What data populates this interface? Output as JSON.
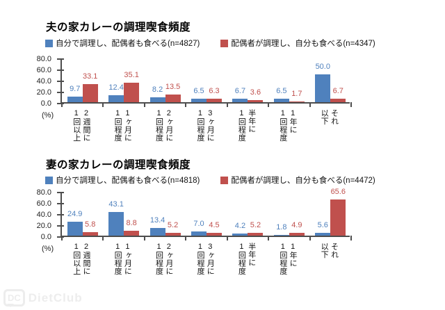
{
  "page": {
    "background": "#ffffff",
    "watermark": {
      "badge_text": "DC",
      "label": "DietClub",
      "color": "#ededed"
    }
  },
  "chart_data": [
    {
      "type": "bar",
      "title": "夫の家カレーの調理喫食頻度",
      "categories": [
        "2週間に\n1回以上",
        "1ヶ月に\n1回程度",
        "2ヶ月に\n1回程度",
        "3ヶ月に\n1回程度",
        "半年に\n1回程度",
        "1年に\n1回程度",
        "それ\n以下"
      ],
      "series": [
        {
          "name": "自分で調理し、配偶者も食べる(n=4827)",
          "color": "#4f81bd",
          "values": [
            9.7,
            12.4,
            8.2,
            6.5,
            6.7,
            6.5,
            50.0
          ]
        },
        {
          "name": "配偶者が調理し、自分も食べる(n=4347)",
          "color": "#c0504d",
          "values": [
            33.1,
            35.1,
            13.5,
            6.3,
            3.6,
            1.7,
            6.7
          ]
        }
      ],
      "ylim": [
        0,
        80
      ],
      "y_ticks": [
        "80.0",
        "60.0",
        "40.0",
        "20.0",
        "0.0"
      ],
      "unit_label": "(%)",
      "legend_position": "top",
      "grid": false,
      "data_labels": "outside-end"
    },
    {
      "type": "bar",
      "title": "妻の家カレーの調理喫食頻度",
      "categories": [
        "2週間に\n1回以上",
        "1ヶ月に\n1回程度",
        "2ヶ月に\n1回程度",
        "3ヶ月に\n1回程度",
        "半年に\n1回程度",
        "1年に\n1回程度",
        "それ\n以下"
      ],
      "series": [
        {
          "name": "自分で調理し、配偶者も食べる(n=4818)",
          "color": "#4f81bd",
          "values": [
            24.9,
            43.1,
            13.4,
            7.0,
            4.2,
            1.8,
            5.6
          ]
        },
        {
          "name": "配偶者が調理し、自分も食べる(n=4472)",
          "color": "#c0504d",
          "values": [
            5.8,
            8.8,
            5.2,
            4.5,
            5.2,
            4.9,
            65.6
          ]
        }
      ],
      "ylim": [
        0,
        80
      ],
      "y_ticks": [
        "80.0",
        "60.0",
        "40.0",
        "20.0",
        "0.0"
      ],
      "unit_label": "(%)",
      "legend_position": "top",
      "grid": false,
      "data_labels": "outside-end"
    }
  ]
}
